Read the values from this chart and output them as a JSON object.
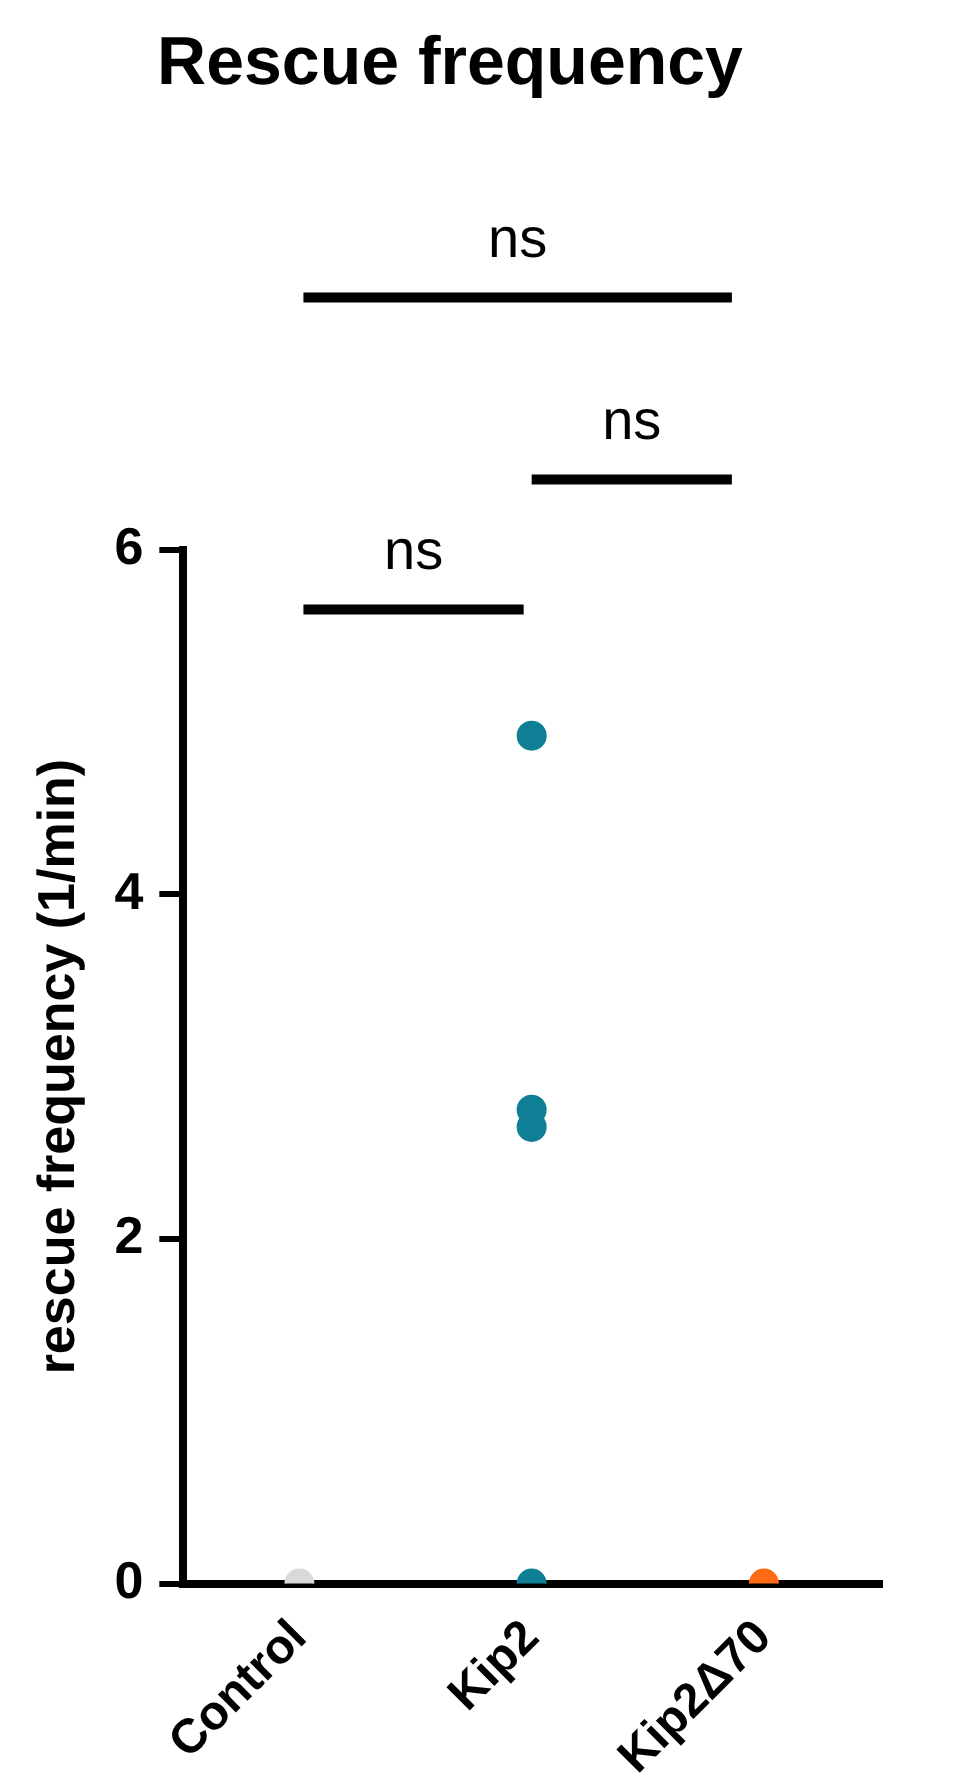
{
  "chart_data": {
    "type": "scatter",
    "title": "Rescue frequency",
    "ylabel": "rescue frequency (1/min)",
    "categories": [
      "Control",
      "Kip2",
      "Kip2Δ70"
    ],
    "series": [
      {
        "color": "#d9d9d9",
        "x": [
          "Control"
        ],
        "values": [
          0
        ]
      },
      {
        "color": "#0f7f95",
        "x": [
          "Kip2",
          "Kip2",
          "Kip2",
          "Kip2"
        ],
        "values": [
          0,
          2.65,
          2.75,
          4.92
        ]
      },
      {
        "color": "#ff6a13",
        "x": [
          "Kip2Δ70"
        ],
        "values": [
          0
        ]
      }
    ],
    "ylim": [
      0,
      6
    ],
    "yticks": [
      0,
      2,
      4,
      6
    ],
    "grid": false,
    "legend": false,
    "marker": "circle",
    "annotations": [
      "ns",
      "ns",
      "ns"
    ]
  }
}
